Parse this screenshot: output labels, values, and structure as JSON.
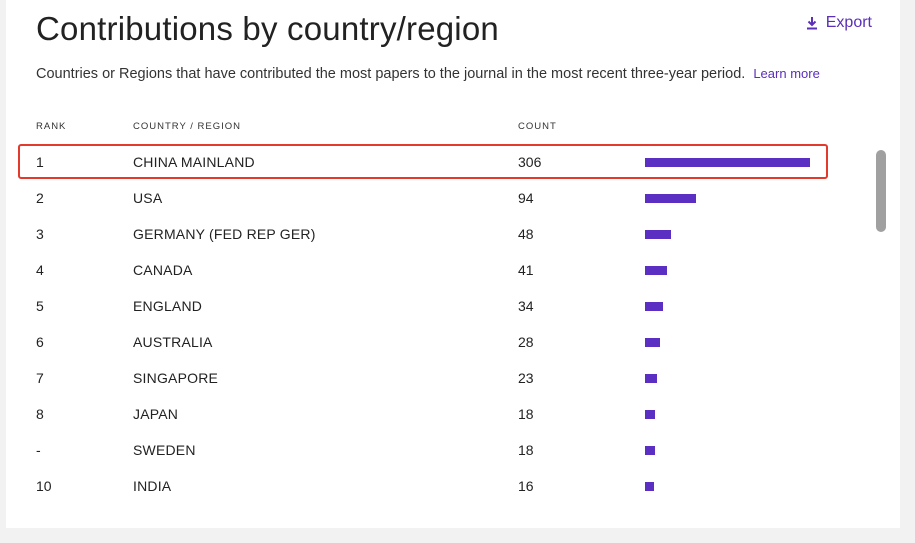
{
  "header": {
    "title": "Contributions by country/region",
    "export_label": "Export",
    "description": "Countries or Regions that have contributed the most papers to the journal in the most recent three-year period.",
    "learn_more": "Learn more"
  },
  "table": {
    "columns": [
      "RANK",
      "COUNTRY / REGION",
      "COUNT"
    ],
    "max_count": 306,
    "rows": [
      {
        "rank": "1",
        "country": "CHINA MAINLAND",
        "count": 306
      },
      {
        "rank": "2",
        "country": "USA",
        "count": 94
      },
      {
        "rank": "3",
        "country": "GERMANY (FED REP GER)",
        "count": 48
      },
      {
        "rank": "4",
        "country": "CANADA",
        "count": 41
      },
      {
        "rank": "5",
        "country": "ENGLAND",
        "count": 34
      },
      {
        "rank": "6",
        "country": "AUSTRALIA",
        "count": 28
      },
      {
        "rank": "7",
        "country": "SINGAPORE",
        "count": 23
      },
      {
        "rank": "8",
        "country": "JAPAN",
        "count": 18
      },
      {
        "rank": "-",
        "country": "SWEDEN",
        "count": 18
      },
      {
        "rank": "10",
        "country": "INDIA",
        "count": 16
      }
    ]
  },
  "colors": {
    "accent": "#5b2fb8",
    "bar": "#5a2fc1",
    "highlight_border": "#e23b2e"
  },
  "icons": {
    "export": "download-icon"
  }
}
